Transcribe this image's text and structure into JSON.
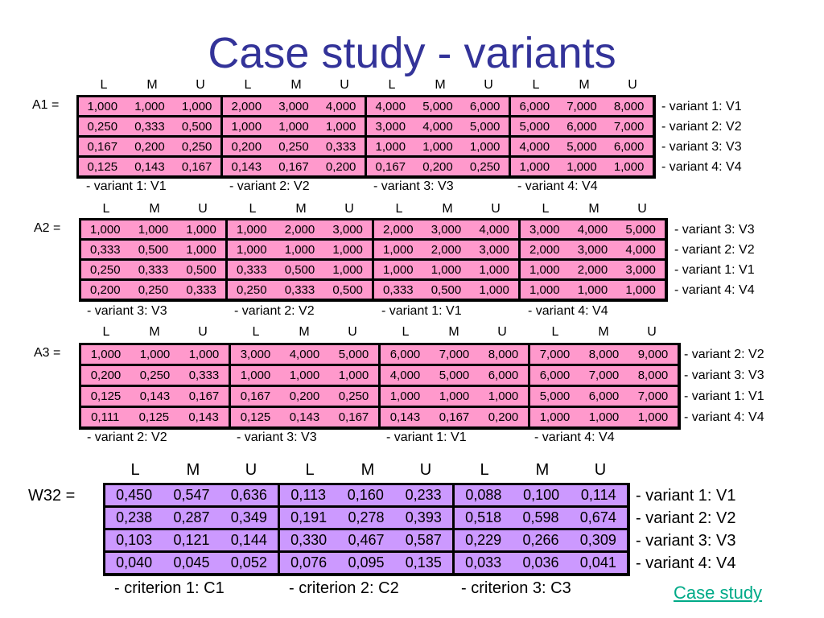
{
  "title": "Case study - variants",
  "lmu": [
    "L",
    "M",
    "U"
  ],
  "matrices": [
    {
      "name": "A1 =",
      "cells": [
        [
          [
            "1,000",
            "1,000",
            "1,000"
          ],
          [
            "2,000",
            "3,000",
            "4,000"
          ],
          [
            "4,000",
            "5,000",
            "6,000"
          ],
          [
            "6,000",
            "7,000",
            "8,000"
          ]
        ],
        [
          [
            "0,250",
            "0,333",
            "0,500"
          ],
          [
            "1,000",
            "1,000",
            "1,000"
          ],
          [
            "3,000",
            "4,000",
            "5,000"
          ],
          [
            "5,000",
            "6,000",
            "7,000"
          ]
        ],
        [
          [
            "0,167",
            "0,200",
            "0,250"
          ],
          [
            "0,200",
            "0,250",
            "0,333"
          ],
          [
            "1,000",
            "1,000",
            "1,000"
          ],
          [
            "4,000",
            "5,000",
            "6,000"
          ]
        ],
        [
          [
            "0,125",
            "0,143",
            "0,167"
          ],
          [
            "0,143",
            "0,167",
            "0,200"
          ],
          [
            "0,167",
            "0,200",
            "0,250"
          ],
          [
            "1,000",
            "1,000",
            "1,000"
          ]
        ]
      ],
      "row_labels": [
        "- variant 1: V1",
        "- variant 2: V2",
        "- variant 3: V3",
        "- variant 4: V4"
      ],
      "col_labels": [
        "- variant 1: V1",
        "- variant 2: V2",
        "- variant 3: V3",
        "- variant 4: V4"
      ]
    },
    {
      "name": "A2 =",
      "cells": [
        [
          [
            "1,000",
            "1,000",
            "1,000"
          ],
          [
            "1,000",
            "2,000",
            "3,000"
          ],
          [
            "2,000",
            "3,000",
            "4,000"
          ],
          [
            "3,000",
            "4,000",
            "5,000"
          ]
        ],
        [
          [
            "0,333",
            "0,500",
            "1,000"
          ],
          [
            "1,000",
            "1,000",
            "1,000"
          ],
          [
            "1,000",
            "2,000",
            "3,000"
          ],
          [
            "2,000",
            "3,000",
            "4,000"
          ]
        ],
        [
          [
            "0,250",
            "0,333",
            "0,500"
          ],
          [
            "0,333",
            "0,500",
            "1,000"
          ],
          [
            "1,000",
            "1,000",
            "1,000"
          ],
          [
            "1,000",
            "2,000",
            "3,000"
          ]
        ],
        [
          [
            "0,200",
            "0,250",
            "0,333"
          ],
          [
            "0,250",
            "0,333",
            "0,500"
          ],
          [
            "0,333",
            "0,500",
            "1,000"
          ],
          [
            "1,000",
            "1,000",
            "1,000"
          ]
        ]
      ],
      "row_labels": [
        "- variant 3: V3",
        "- variant 2: V2",
        "- variant 1: V1",
        "- variant 4: V4"
      ],
      "col_labels": [
        "- variant 3: V3",
        "- variant 2: V2",
        "- variant 1: V1",
        "- variant 4: V4"
      ]
    },
    {
      "name": "A3 =",
      "cells": [
        [
          [
            "1,000",
            "1,000",
            "1,000"
          ],
          [
            "3,000",
            "4,000",
            "5,000"
          ],
          [
            "6,000",
            "7,000",
            "8,000"
          ],
          [
            "7,000",
            "8,000",
            "9,000"
          ]
        ],
        [
          [
            "0,200",
            "0,250",
            "0,333"
          ],
          [
            "1,000",
            "1,000",
            "1,000"
          ],
          [
            "4,000",
            "5,000",
            "6,000"
          ],
          [
            "6,000",
            "7,000",
            "8,000"
          ]
        ],
        [
          [
            "0,125",
            "0,143",
            "0,167"
          ],
          [
            "0,167",
            "0,200",
            "0,250"
          ],
          [
            "1,000",
            "1,000",
            "1,000"
          ],
          [
            "5,000",
            "6,000",
            "7,000"
          ]
        ],
        [
          [
            "0,111",
            "0,125",
            "0,143"
          ],
          [
            "0,125",
            "0,143",
            "0,167"
          ],
          [
            "0,143",
            "0,167",
            "0,200"
          ],
          [
            "1,000",
            "1,000",
            "1,000"
          ]
        ]
      ],
      "row_labels": [
        "- variant 2: V2",
        "- variant 3: V3",
        "- variant 1: V1",
        "- variant 4: V4"
      ],
      "col_labels": [
        "- variant 2: V2",
        "- variant 3: V3",
        "- variant 1: V1",
        "- variant 4: V4"
      ]
    }
  ],
  "w32": {
    "name": "W32 =",
    "cells": [
      [
        [
          "0,450",
          "0,547",
          "0,636"
        ],
        [
          "0,113",
          "0,160",
          "0,233"
        ],
        [
          "0,088",
          "0,100",
          "0,114"
        ]
      ],
      [
        [
          "0,238",
          "0,287",
          "0,349"
        ],
        [
          "0,191",
          "0,278",
          "0,393"
        ],
        [
          "0,518",
          "0,598",
          "0,674"
        ]
      ],
      [
        [
          "0,103",
          "0,121",
          "0,144"
        ],
        [
          "0,330",
          "0,467",
          "0,587"
        ],
        [
          "0,229",
          "0,266",
          "0,309"
        ]
      ],
      [
        [
          "0,040",
          "0,045",
          "0,052"
        ],
        [
          "0,076",
          "0,095",
          "0,135"
        ],
        [
          "0,033",
          "0,036",
          "0,041"
        ]
      ]
    ],
    "row_labels": [
      "- variant 1: V1",
      "- variant 2: V2",
      "- variant 3: V3",
      "- variant 4: V4"
    ],
    "col_labels": [
      "- criterion 1: C1",
      "- criterion 2: C2",
      "- criterion 3: C3"
    ]
  },
  "link": "Case study",
  "colors": {
    "title": "#333399",
    "pink": "#ff99cc",
    "violet": "#cc99ff",
    "link": "#00aa88"
  }
}
